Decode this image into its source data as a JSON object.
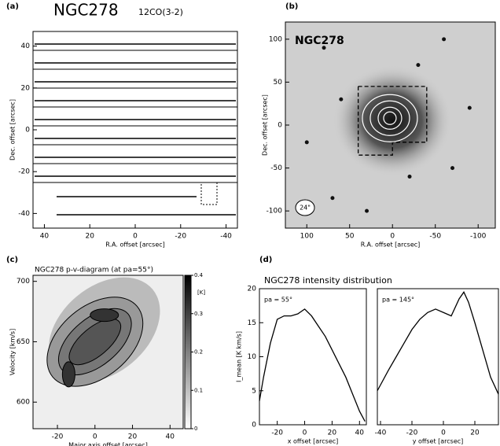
{
  "chart_data": [
    {
      "type": "spectra-grid",
      "label": "(a)",
      "title": "NGC278",
      "subtitle": "12CO(3-2)",
      "xlabel": "R.A. offset [arcsec]",
      "ylabel": "Dec. offset [arcsec]",
      "xlim": [
        45,
        -45
      ],
      "xticks": [
        40,
        20,
        0,
        -20,
        -40
      ],
      "ylim": [
        -47,
        47
      ],
      "yticks": [
        40,
        20,
        0,
        -20,
        -40
      ]
    },
    {
      "type": "image",
      "label": "(b)",
      "title": "NGC278",
      "beam": "24\"",
      "xlabel": "R.A. offset [arcsec]",
      "ylabel": "Dec. offset [arcsec]",
      "xlim": [
        125,
        -120
      ],
      "xticks": [
        100,
        50,
        0,
        -50,
        -100
      ],
      "ylim": [
        -120,
        120
      ],
      "yticks": [
        100,
        50,
        0,
        -50,
        -100
      ]
    },
    {
      "type": "contour",
      "label": "(c)",
      "title": "NGC278   p-v-diagram (at pa=55°)",
      "xlabel": "Major axis offset [arcsec]",
      "ylabel": "Velocity [km/s]",
      "xlim": [
        -33,
        47
      ],
      "xticks": [
        -20,
        0,
        20,
        40
      ],
      "ylim": [
        578,
        705
      ],
      "yticks": [
        600,
        650,
        700
      ],
      "colorbar": {
        "label": "[K]",
        "lim": [
          0,
          0.4
        ],
        "ticks": [
          0,
          0.1,
          0.2,
          0.3,
          0.4
        ]
      }
    },
    {
      "type": "line",
      "label": "(d)",
      "title": "NGC278 intensity distribution",
      "note": "pa = 55°",
      "xlabel": "x offset [arcsec]",
      "ylabel": "I_mean [K km/s]",
      "color": "#000000",
      "xlim": [
        -33,
        45
      ],
      "xticks": [
        -20,
        0,
        20,
        40
      ],
      "ylim": [
        0,
        20
      ],
      "yticks": [
        0,
        5,
        10,
        15,
        20
      ],
      "x": [
        -33,
        -30,
        -25,
        -20,
        -15,
        -10,
        -5,
        0,
        5,
        10,
        15,
        20,
        25,
        30,
        35,
        40,
        44
      ],
      "values": [
        3.5,
        7,
        12,
        15.5,
        16,
        16,
        16.3,
        17,
        16,
        14.5,
        13,
        11,
        9,
        7,
        4.5,
        2,
        0.5
      ]
    },
    {
      "type": "line",
      "note": "pa = 145°",
      "xlabel": "y offset [arcsec]",
      "color": "#000000",
      "xlim": [
        -42,
        35
      ],
      "xticks": [
        -40,
        -20,
        0,
        20
      ],
      "ylim": [
        0,
        20
      ],
      "x": [
        -42,
        -35,
        -30,
        -25,
        -20,
        -15,
        -10,
        -5,
        0,
        5,
        10,
        13,
        16,
        20,
        25,
        30,
        35
      ],
      "values": [
        5,
        8,
        10,
        12,
        14,
        15.5,
        16.5,
        17,
        16.5,
        16,
        18.5,
        19.5,
        18,
        15,
        11,
        7,
        4.5
      ]
    }
  ]
}
